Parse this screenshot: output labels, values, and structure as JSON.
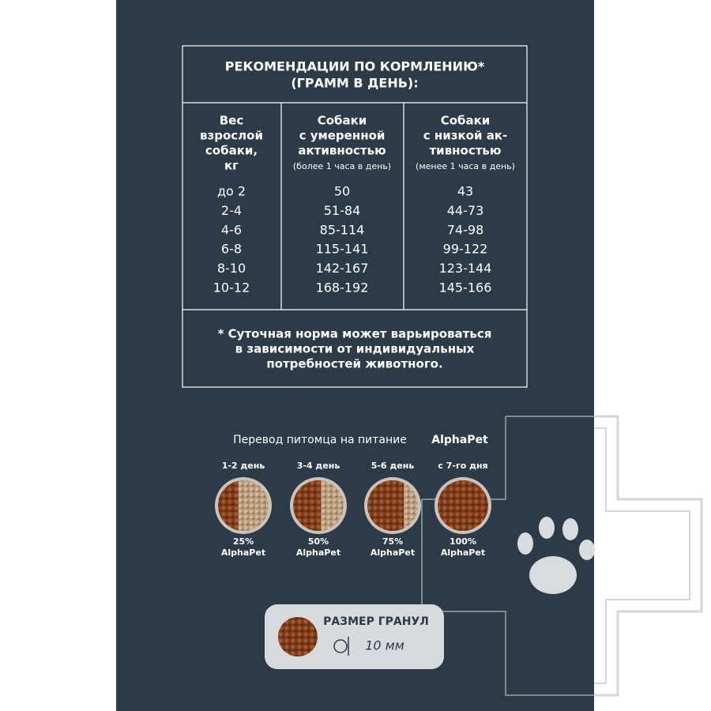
{
  "header": {
    "title_lines": [
      "РЕКОМЕНДАЦИИ ПО КОРМЛЕНИЮ*",
      "(ГРАММ В ДЕНЬ):"
    ]
  },
  "table": {
    "columns": [
      {
        "lines": [
          "Вес",
          "взрослой",
          "собаки,",
          "кг"
        ]
      },
      {
        "lines": [
          "Собаки",
          "с умеренной",
          "активностью"
        ],
        "note": "(более 1 часа в день)"
      },
      {
        "lines": [
          "Собаки",
          "с низкой ак-",
          "тивностью"
        ],
        "note": "(менее 1 часа в день)"
      }
    ],
    "rows": [
      [
        "до 2",
        "50",
        "43"
      ],
      [
        "2-4",
        "51-84",
        "44-73"
      ],
      [
        "4-6",
        "85-114",
        "74-98"
      ],
      [
        "6-8",
        "115-141",
        "99-122"
      ],
      [
        "8-10",
        "142-167",
        "123-144"
      ],
      [
        "10-12",
        "168-192",
        "145-166"
      ]
    ]
  },
  "footnote": {
    "lines": [
      "* Суточная норма может варьироваться",
      "в зависимости от индивидуальных",
      "потребностей животного."
    ]
  },
  "transition": {
    "title": "Перевод питомца на питание",
    "brand": "AlphaPet",
    "stages": [
      {
        "day": "1-2 день",
        "percent": "25%",
        "brand": "AlphaPet"
      },
      {
        "day": "3-4 день",
        "percent": "50%",
        "brand": "AlphaPet"
      },
      {
        "day": "5-6 день",
        "percent": "75%",
        "brand": "AlphaPet"
      },
      {
        "day": "с 7-го дня",
        "percent": "100%",
        "brand": "AlphaPet"
      }
    ]
  },
  "granule": {
    "title": "РАЗМЕР ГРАНУЛ",
    "size": "10 мм"
  }
}
